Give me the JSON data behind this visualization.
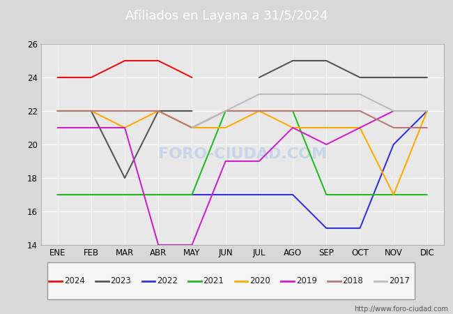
{
  "title": "Afiliados en Layana a 31/5/2024",
  "header_color": "#4169b8",
  "ylim": [
    14,
    26
  ],
  "yticks": [
    14,
    16,
    18,
    20,
    22,
    24,
    26
  ],
  "months": [
    "ENE",
    "FEB",
    "MAR",
    "ABR",
    "MAY",
    "JUN",
    "JUL",
    "AGO",
    "SEP",
    "OCT",
    "NOV",
    "DIC"
  ],
  "series": {
    "2024": {
      "color": "#ee1111",
      "data": [
        24,
        24,
        25,
        25,
        24,
        null,
        null,
        null,
        null,
        null,
        null,
        null
      ]
    },
    "2023": {
      "color": "#555555",
      "data": [
        22,
        22,
        18,
        22,
        22,
        null,
        24,
        25,
        25,
        24,
        24,
        24
      ]
    },
    "2022": {
      "color": "#3333dd",
      "data": [
        17,
        17,
        17,
        17,
        17,
        17,
        17,
        17,
        15,
        15,
        20,
        22
      ]
    },
    "2021": {
      "color": "#22bb22",
      "data": [
        17,
        17,
        17,
        17,
        17,
        22,
        22,
        22,
        17,
        17,
        17,
        17
      ]
    },
    "2020": {
      "color": "#ffaa00",
      "data": [
        22,
        22,
        21,
        22,
        21,
        21,
        22,
        21,
        21,
        21,
        17,
        22
      ]
    },
    "2019": {
      "color": "#cc22cc",
      "data": [
        21,
        21,
        21,
        14,
        14,
        19,
        19,
        21,
        20,
        21,
        22,
        22
      ]
    },
    "2018": {
      "color": "#bb7777",
      "data": [
        22,
        22,
        22,
        22,
        21,
        22,
        22,
        22,
        22,
        22,
        21,
        21
      ]
    },
    "2017": {
      "color": "#bbbbbb",
      "data": [
        null,
        null,
        null,
        null,
        21,
        22,
        23,
        23,
        23,
        23,
        22,
        22
      ]
    }
  },
  "bg_color": "#d8d8d8",
  "plot_bg": "#e8e8e8",
  "grid_color": "#ffffff",
  "watermark_text": "FORO-CIUDAD.COM",
  "footer_url": "http://www.foro-ciudad.com"
}
